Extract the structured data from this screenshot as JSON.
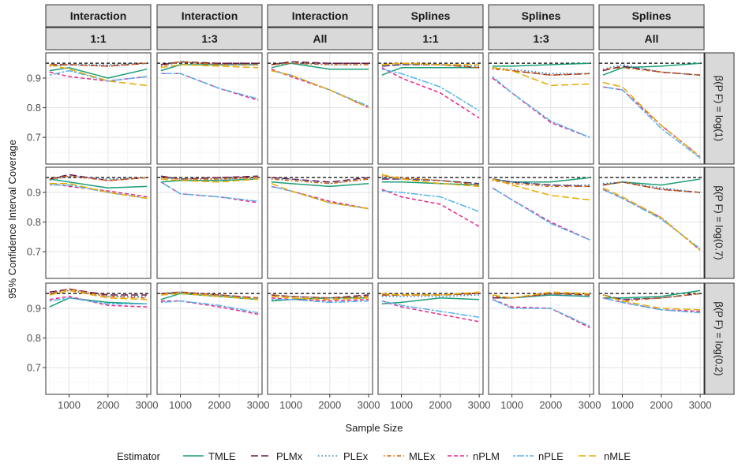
{
  "chart_data": {
    "type": "line",
    "ylabel": "95% Confidence Interval Coverage",
    "xlabel": "Sample Size",
    "xlim": [
      400,
      3100
    ],
    "ylim": [
      0.61,
      0.985
    ],
    "x_ticks": [
      1000,
      2000,
      3000
    ],
    "x_tick_labels": [
      "1000",
      "2000",
      "3000"
    ],
    "y_ticks": [
      0.7,
      0.8,
      0.9
    ],
    "y_tick_labels": [
      "0.7",
      "0.8",
      "0.9"
    ],
    "reference_line": 0.95,
    "grid": true,
    "legend_position": "bottom",
    "legend_title": "Estimator",
    "x": [
      500,
      1000,
      2000,
      3000
    ],
    "col_strips": [
      [
        "Interaction",
        "1:1"
      ],
      [
        "Interaction",
        "1:3"
      ],
      [
        "Interaction",
        "All"
      ],
      [
        "Splines",
        "1:1"
      ],
      [
        "Splines",
        "1:3"
      ],
      [
        "Splines",
        "All"
      ]
    ],
    "row_strips": [
      "β(P F) = log(1)",
      "β(P F) = log(0.7)",
      "β(P F) = log(0.2)"
    ],
    "series_styles": [
      {
        "name": "TMLE",
        "color": "#1b9e77",
        "dash": "solid"
      },
      {
        "name": "PLMx",
        "color": "#6a1a4c",
        "dash": "longdash"
      },
      {
        "name": "PLEx",
        "color": "#2c7fb8",
        "dash": "dotted"
      },
      {
        "name": "MLEx",
        "color": "#d95f02",
        "dash": "dotdash"
      },
      {
        "name": "nPLM",
        "color": "#e7298a",
        "dash": "dashed"
      },
      {
        "name": "nPLE",
        "color": "#56b4e9",
        "dash": "twodash"
      },
      {
        "name": "nMLE",
        "color": "#e6ab02",
        "dash": "longdash"
      }
    ],
    "panels": [
      [
        {
          "TMLE": [
            0.925,
            0.935,
            0.9,
            0.93
          ],
          "PLMx": [
            0.945,
            0.945,
            0.94,
            0.95
          ],
          "PLEx": [
            0.94,
            0.945,
            0.945,
            0.95
          ],
          "MLEx": [
            0.94,
            0.945,
            0.94,
            0.95
          ],
          "nPLM": [
            0.92,
            0.905,
            0.89,
            0.905
          ],
          "nPLE": [
            0.91,
            0.925,
            0.89,
            0.905
          ],
          "nMLE": [
            0.945,
            0.93,
            0.89,
            0.875
          ]
        },
        {
          "TMLE": [
            0.925,
            0.945,
            0.945,
            0.945
          ],
          "PLMx": [
            0.945,
            0.955,
            0.95,
            0.95
          ],
          "PLEx": [
            0.94,
            0.955,
            0.945,
            0.945
          ],
          "MLEx": [
            0.94,
            0.955,
            0.945,
            0.945
          ],
          "nPLM": [
            0.915,
            0.915,
            0.865,
            0.825
          ],
          "nPLE": [
            0.915,
            0.915,
            0.865,
            0.83
          ],
          "nMLE": [
            0.935,
            0.945,
            0.94,
            0.935
          ]
        },
        {
          "TMLE": [
            0.935,
            0.95,
            0.93,
            0.93
          ],
          "PLMx": [
            0.945,
            0.955,
            0.95,
            0.95
          ],
          "PLEx": [
            0.945,
            0.95,
            0.945,
            0.945
          ],
          "MLEx": [
            0.945,
            0.95,
            0.945,
            0.945
          ],
          "nPLM": [
            0.93,
            0.905,
            0.86,
            0.8
          ],
          "nPLE": [
            0.925,
            0.91,
            0.86,
            0.805
          ],
          "nMLE": [
            0.925,
            0.91,
            0.86,
            0.8
          ]
        },
        {
          "TMLE": [
            0.91,
            0.935,
            0.935,
            0.935
          ],
          "PLMx": [
            0.94,
            0.945,
            0.945,
            0.935
          ],
          "PLEx": [
            0.94,
            0.945,
            0.945,
            0.94
          ],
          "MLEx": [
            0.945,
            0.95,
            0.945,
            0.935
          ],
          "nPLM": [
            0.935,
            0.9,
            0.85,
            0.765
          ],
          "nPLE": [
            0.93,
            0.915,
            0.87,
            0.79
          ],
          "nMLE": [
            0.945,
            0.95,
            0.945,
            0.945
          ]
        },
        {
          "TMLE": [
            0.94,
            0.94,
            0.945,
            0.95
          ],
          "PLMx": [
            0.935,
            0.925,
            0.91,
            0.915
          ],
          "PLEx": [
            0.935,
            0.93,
            0.915,
            0.915
          ],
          "MLEx": [
            0.93,
            0.925,
            0.91,
            0.915
          ],
          "nPLM": [
            0.9,
            0.85,
            0.75,
            0.7
          ],
          "nPLE": [
            0.905,
            0.85,
            0.755,
            0.7
          ],
          "nMLE": [
            0.935,
            0.925,
            0.875,
            0.88
          ]
        },
        {
          "TMLE": [
            0.91,
            0.935,
            0.94,
            0.95
          ],
          "PLMx": [
            0.925,
            0.94,
            0.92,
            0.91
          ],
          "PLEx": [
            0.93,
            0.945,
            0.92,
            0.91
          ],
          "MLEx": [
            0.93,
            0.935,
            0.92,
            0.91
          ],
          "nPLM": [
            0.87,
            0.86,
            0.74,
            0.635
          ],
          "nPLE": [
            0.87,
            0.86,
            0.73,
            0.63
          ],
          "nMLE": [
            0.885,
            0.87,
            0.74,
            0.635
          ]
        }
      ],
      [
        {
          "TMLE": [
            0.945,
            0.935,
            0.915,
            0.92
          ],
          "PLMx": [
            0.945,
            0.96,
            0.94,
            0.95
          ],
          "PLEx": [
            0.94,
            0.955,
            0.945,
            0.95
          ],
          "MLEx": [
            0.945,
            0.955,
            0.94,
            0.95
          ],
          "nPLM": [
            0.93,
            0.92,
            0.905,
            0.885
          ],
          "nPLE": [
            0.925,
            0.925,
            0.9,
            0.88
          ],
          "nMLE": [
            0.93,
            0.93,
            0.9,
            0.88
          ]
        },
        {
          "TMLE": [
            0.935,
            0.94,
            0.94,
            0.945
          ],
          "PLMx": [
            0.955,
            0.945,
            0.95,
            0.955
          ],
          "PLEx": [
            0.95,
            0.945,
            0.945,
            0.95
          ],
          "MLEx": [
            0.95,
            0.945,
            0.945,
            0.95
          ],
          "nPLM": [
            0.935,
            0.895,
            0.885,
            0.865
          ],
          "nPLE": [
            0.935,
            0.895,
            0.885,
            0.87
          ],
          "nMLE": [
            0.945,
            0.94,
            0.935,
            0.945
          ]
        },
        {
          "TMLE": [
            0.935,
            0.93,
            0.92,
            0.93
          ],
          "PLMx": [
            0.95,
            0.945,
            0.935,
            0.95
          ],
          "PLEx": [
            0.945,
            0.945,
            0.93,
            0.945
          ],
          "MLEx": [
            0.945,
            0.94,
            0.93,
            0.945
          ],
          "nPLM": [
            0.92,
            0.905,
            0.87,
            0.845
          ],
          "nPLE": [
            0.92,
            0.905,
            0.865,
            0.845
          ],
          "nMLE": [
            0.93,
            0.905,
            0.865,
            0.845
          ]
        },
        {
          "TMLE": [
            0.935,
            0.935,
            0.93,
            0.925
          ],
          "PLMx": [
            0.945,
            0.945,
            0.94,
            0.93
          ],
          "PLEx": [
            0.95,
            0.945,
            0.94,
            0.93
          ],
          "MLEx": [
            0.955,
            0.95,
            0.94,
            0.925
          ],
          "nPLM": [
            0.91,
            0.885,
            0.86,
            0.785
          ],
          "nPLE": [
            0.905,
            0.9,
            0.885,
            0.835
          ],
          "nMLE": [
            0.96,
            0.945,
            0.93,
            0.92
          ]
        },
        {
          "TMLE": [
            0.945,
            0.935,
            0.935,
            0.95
          ],
          "PLMx": [
            0.945,
            0.935,
            0.925,
            0.92
          ],
          "PLEx": [
            0.945,
            0.935,
            0.925,
            0.925
          ],
          "MLEx": [
            0.94,
            0.93,
            0.92,
            0.92
          ],
          "nPLM": [
            0.915,
            0.875,
            0.8,
            0.74
          ],
          "nPLE": [
            0.915,
            0.875,
            0.795,
            0.74
          ],
          "nMLE": [
            0.945,
            0.925,
            0.89,
            0.875
          ]
        },
        {
          "TMLE": [
            0.925,
            0.935,
            0.925,
            0.945
          ],
          "PLMx": [
            0.925,
            0.935,
            0.91,
            0.9
          ],
          "PLEx": [
            0.93,
            0.935,
            0.915,
            0.9
          ],
          "MLEx": [
            0.925,
            0.935,
            0.91,
            0.9
          ],
          "nPLM": [
            0.91,
            0.88,
            0.815,
            0.705
          ],
          "nPLE": [
            0.91,
            0.88,
            0.81,
            0.71
          ],
          "nMLE": [
            0.915,
            0.885,
            0.815,
            0.705
          ]
        }
      ],
      [
        {
          "TMLE": [
            0.905,
            0.935,
            0.92,
            0.915
          ],
          "PLMx": [
            0.955,
            0.965,
            0.945,
            0.945
          ],
          "PLEx": [
            0.95,
            0.96,
            0.94,
            0.94
          ],
          "MLEx": [
            0.95,
            0.965,
            0.94,
            0.935
          ],
          "nPLM": [
            0.93,
            0.94,
            0.91,
            0.905
          ],
          "nPLE": [
            0.925,
            0.935,
            0.915,
            0.915
          ],
          "nMLE": [
            0.945,
            0.96,
            0.935,
            0.93
          ]
        },
        {
          "TMLE": [
            0.93,
            0.95,
            0.94,
            0.93
          ],
          "PLMx": [
            0.95,
            0.955,
            0.945,
            0.935
          ],
          "PLEx": [
            0.95,
            0.955,
            0.945,
            0.935
          ],
          "MLEx": [
            0.95,
            0.955,
            0.945,
            0.935
          ],
          "nPLM": [
            0.925,
            0.925,
            0.905,
            0.88
          ],
          "nPLE": [
            0.92,
            0.925,
            0.91,
            0.885
          ],
          "nMLE": [
            0.945,
            0.95,
            0.94,
            0.93
          ]
        },
        {
          "TMLE": [
            0.925,
            0.93,
            0.935,
            0.935
          ],
          "PLMx": [
            0.945,
            0.94,
            0.935,
            0.945
          ],
          "PLEx": [
            0.945,
            0.94,
            0.935,
            0.94
          ],
          "MLEx": [
            0.945,
            0.94,
            0.935,
            0.94
          ],
          "nPLM": [
            0.935,
            0.93,
            0.925,
            0.93
          ],
          "nPLE": [
            0.93,
            0.93,
            0.92,
            0.925
          ],
          "nMLE": [
            0.94,
            0.935,
            0.93,
            0.935
          ]
        },
        {
          "TMLE": [
            0.915,
            0.92,
            0.935,
            0.93
          ],
          "PLMx": [
            0.945,
            0.945,
            0.945,
            0.95
          ],
          "PLEx": [
            0.94,
            0.94,
            0.94,
            0.945
          ],
          "MLEx": [
            0.945,
            0.945,
            0.945,
            0.95
          ],
          "nPLM": [
            0.925,
            0.905,
            0.88,
            0.855
          ],
          "nPLE": [
            0.925,
            0.91,
            0.89,
            0.87
          ],
          "nMLE": [
            0.95,
            0.945,
            0.945,
            0.955
          ]
        },
        {
          "TMLE": [
            0.935,
            0.935,
            0.945,
            0.94
          ],
          "PLMx": [
            0.935,
            0.935,
            0.95,
            0.945
          ],
          "PLEx": [
            0.94,
            0.935,
            0.945,
            0.94
          ],
          "MLEx": [
            0.94,
            0.935,
            0.95,
            0.945
          ],
          "nPLM": [
            0.93,
            0.905,
            0.9,
            0.835
          ],
          "nPLE": [
            0.93,
            0.9,
            0.9,
            0.84
          ],
          "nMLE": [
            0.945,
            0.935,
            0.955,
            0.95
          ]
        },
        {
          "TMLE": [
            0.935,
            0.935,
            0.94,
            0.96
          ],
          "PLMx": [
            0.945,
            0.93,
            0.935,
            0.95
          ],
          "PLEx": [
            0.945,
            0.93,
            0.935,
            0.95
          ],
          "MLEx": [
            0.945,
            0.925,
            0.935,
            0.95
          ],
          "nPLM": [
            0.935,
            0.92,
            0.895,
            0.89
          ],
          "nPLE": [
            0.935,
            0.92,
            0.895,
            0.885
          ],
          "nMLE": [
            0.945,
            0.925,
            0.9,
            0.895
          ]
        }
      ]
    ]
  }
}
